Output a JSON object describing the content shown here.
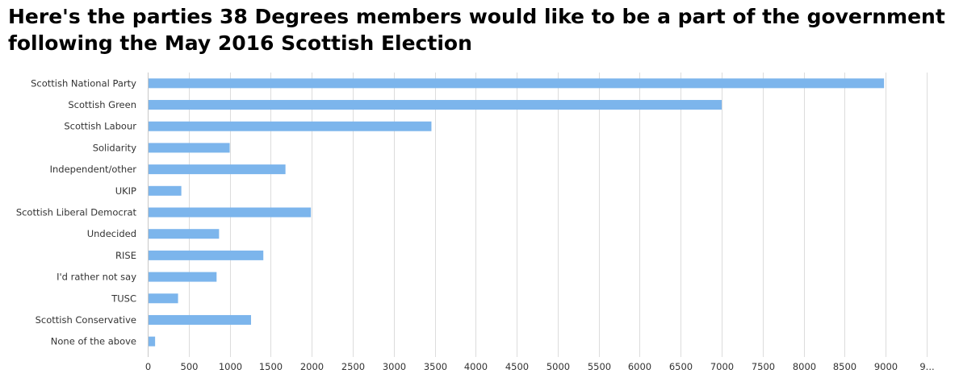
{
  "chart_data": {
    "type": "bar",
    "orientation": "horizontal",
    "title": "Here's the parties 38 Degrees members would like to be a part of the government following the May 2016 Scottish Election",
    "categories": [
      "Scottish National Party",
      "Scottish Green",
      "Scottish Labour",
      "Solidarity",
      "Independent/other",
      "UKIP",
      "Scottish Liberal Democrat",
      "Undecided",
      "RISE",
      "I'd rather not say",
      "TUSC",
      "Scottish Conservative",
      "None of the above"
    ],
    "values": [
      8970,
      6990,
      3450,
      990,
      1670,
      400,
      1980,
      860,
      1400,
      830,
      360,
      1250,
      80
    ],
    "xlim": [
      0,
      9500
    ],
    "xticks": [
      "0",
      "500",
      "1000",
      "1500",
      "2000",
      "2500",
      "3000",
      "3500",
      "4000",
      "4500",
      "5000",
      "5500",
      "6000",
      "6500",
      "7000",
      "7500",
      "8000",
      "8500",
      "9000",
      "9..."
    ],
    "grid": true,
    "colors": {
      "bar": "#7cb5ec"
    }
  }
}
